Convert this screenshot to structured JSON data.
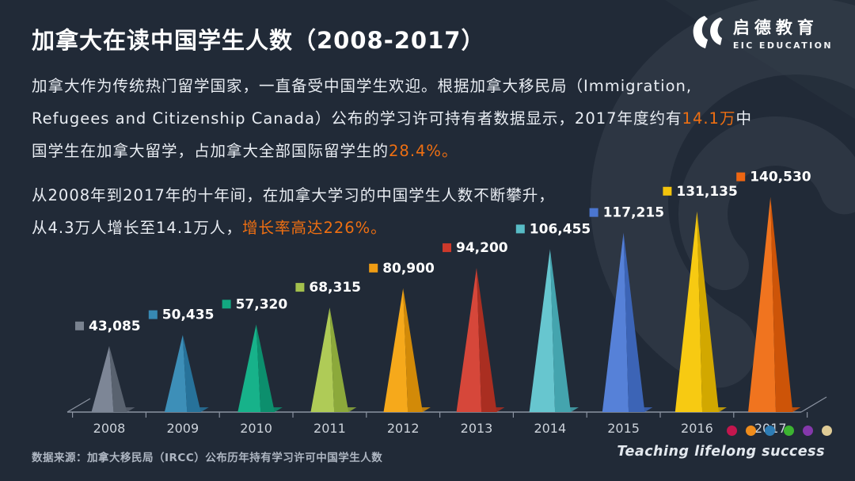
{
  "header": {
    "title": "加拿大在读中国学生人数（2008-2017）",
    "logo": {
      "cn": "启德教育",
      "en": "EIC EDUCATION"
    }
  },
  "intro": {
    "lines": [
      [
        {
          "t": "加拿大作为传统热门留学国家，一直备受中国学生欢迎。根据加拿大移民局（Immigration,"
        }
      ],
      [
        {
          "t": "Refugees and Citizenship Canada）公布的学习许可持有者数据显示，2017年度约有"
        },
        {
          "t": "14.1万",
          "hl": true
        },
        {
          "t": "中"
        }
      ],
      [
        {
          "t": "国学生在加拿大留学，占加拿大全部国际留学生的"
        },
        {
          "t": "28.4%。",
          "hl": true
        }
      ]
    ]
  },
  "growth": {
    "lines": [
      [
        {
          "t": "从2008年到2017年的十年间，在加拿大学习的中国学生人数不断攀升，"
        }
      ],
      [
        {
          "t": "从4.3万人增长至14.1万人，"
        },
        {
          "t": "增长率高达226%。",
          "hl": true
        }
      ]
    ]
  },
  "chart_data": {
    "type": "bar",
    "variant": "3d-pyramid-cones",
    "title": "加拿大在读中国学生人数（2008-2017）",
    "categories": [
      "2008",
      "2009",
      "2010",
      "2011",
      "2012",
      "2013",
      "2014",
      "2015",
      "2016",
      "2017"
    ],
    "values": [
      43085,
      50435,
      57320,
      68315,
      80900,
      94200,
      106455,
      117215,
      131135,
      140530
    ],
    "value_labels": [
      "43,085",
      "50,435",
      "57,320",
      "68,315",
      "80,900",
      "94,200",
      "106,455",
      "117,215",
      "131,135",
      "140,530"
    ],
    "ylim": [
      0,
      145000
    ],
    "xlabel": "",
    "ylabel": "",
    "grid": false,
    "legend_position": "value label with color swatch above each cone",
    "colors": [
      {
        "light": "#7d8696",
        "dark": "#59626f",
        "swatch": "#79828f"
      },
      {
        "light": "#3d8fb8",
        "dark": "#27729a",
        "swatch": "#3789b3"
      },
      {
        "light": "#17b28a",
        "dark": "#0c8f6d",
        "swatch": "#12a981"
      },
      {
        "light": "#afcb57",
        "dark": "#8ca93b",
        "swatch": "#a3c04d"
      },
      {
        "light": "#f6a91b",
        "dark": "#d28a08",
        "swatch": "#f09d14"
      },
      {
        "light": "#d6473a",
        "dark": "#aa2e21",
        "swatch": "#cd392b"
      },
      {
        "light": "#67c6cf",
        "dark": "#44a4ae",
        "swatch": "#58bcc6"
      },
      {
        "light": "#5681d8",
        "dark": "#3c64b6",
        "swatch": "#4b76d0"
      },
      {
        "light": "#f7ca12",
        "dark": "#d2a800",
        "swatch": "#f3c40c"
      },
      {
        "light": "#f0741f",
        "dark": "#cd5408",
        "swatch": "#ee6612"
      }
    ]
  },
  "footer": {
    "source": "数据来源：加拿大移民局（IRCC）公布历年持有学习许可中国学生人数",
    "slogan": "Teaching lifelong success",
    "dot_colors": [
      "#c4164e",
      "#ef8c1c",
      "#2d7cb5",
      "#3cb331",
      "#8438ab",
      "#dfcb96"
    ]
  },
  "theme": {
    "background": "#212a37",
    "accent": "#ee6f12",
    "axis": "#8b93a1",
    "watermark": "#3a4350",
    "value_text": "#ffffff",
    "year_text": "#ccd2da"
  }
}
